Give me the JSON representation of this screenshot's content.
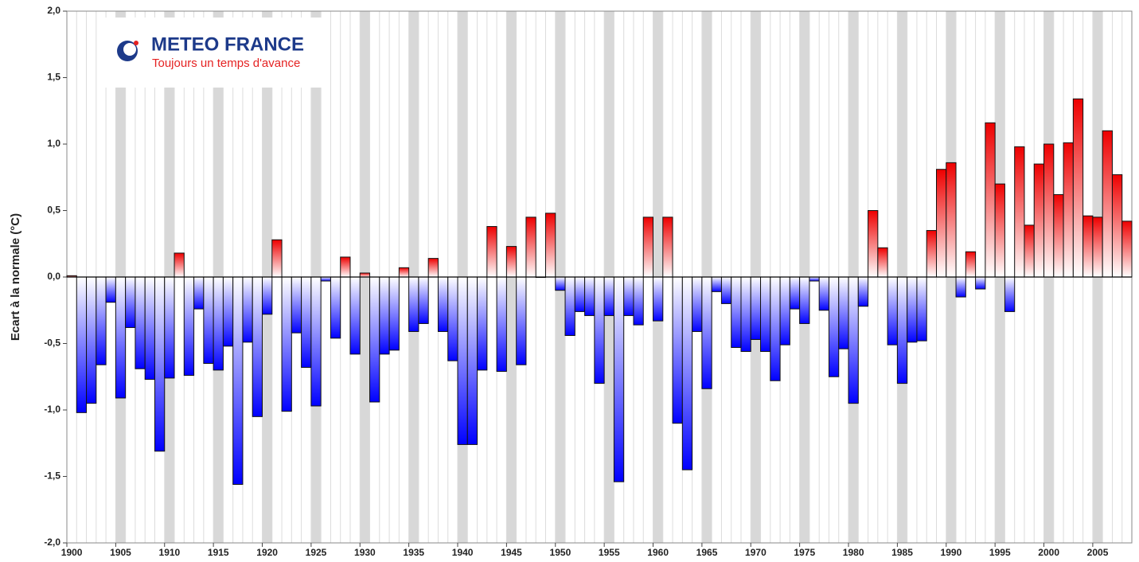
{
  "chart_data": {
    "type": "bar",
    "ylabel": "Ecart à la normale (°C)",
    "logo_title": "METEO FRANCE",
    "logo_subtitle": "Toujours un temps d'avance",
    "categories": [
      "1900",
      null,
      null,
      null,
      null,
      "1905",
      null,
      null,
      null,
      null,
      "1910",
      null,
      null,
      null,
      null,
      "1915",
      null,
      null,
      null,
      null,
      "1920",
      null,
      null,
      null,
      null,
      "1925",
      null,
      null,
      null,
      null,
      "1930",
      null,
      null,
      null,
      null,
      "1935",
      null,
      null,
      null,
      null,
      "1940",
      null,
      null,
      null,
      null,
      "1945",
      null,
      null,
      null,
      null,
      "1950",
      null,
      null,
      null,
      null,
      "1955",
      null,
      null,
      null,
      null,
      "1960",
      null,
      null,
      null,
      null,
      "1965",
      null,
      null,
      null,
      null,
      "1970",
      null,
      null,
      null,
      null,
      "1975",
      null,
      null,
      null,
      null,
      "1980",
      null,
      null,
      null,
      null,
      "1985",
      null,
      null,
      null,
      null,
      "1990",
      null,
      null,
      null,
      null,
      "1995",
      null,
      null,
      null,
      null,
      "2000",
      null,
      null,
      null,
      null,
      "2005",
      null,
      null,
      null
    ],
    "values": [
      0.01,
      -1.02,
      -0.95,
      -0.66,
      -0.19,
      -0.91,
      -0.38,
      -0.69,
      -0.77,
      -1.31,
      -0.76,
      0.18,
      -0.74,
      -0.24,
      -0.65,
      -0.7,
      -0.52,
      -1.56,
      -0.49,
      -1.05,
      -0.28,
      0.28,
      -1.01,
      -0.42,
      -0.68,
      -0.97,
      -0.03,
      -0.46,
      0.15,
      -0.58,
      0.03,
      -0.94,
      -0.58,
      -0.55,
      0.07,
      -0.41,
      -0.35,
      0.14,
      -0.41,
      -0.63,
      -1.26,
      -1.26,
      -0.7,
      0.38,
      -0.71,
      0.23,
      -0.66,
      0.45,
      0.0,
      0.48,
      -0.1,
      -0.44,
      -0.26,
      -0.29,
      -0.8,
      -0.29,
      -1.54,
      -0.29,
      -0.36,
      0.45,
      -0.33,
      0.45,
      -1.1,
      -1.45,
      -0.41,
      -0.84,
      -0.11,
      -0.2,
      -0.53,
      -0.56,
      -0.47,
      -0.56,
      -0.78,
      -0.51,
      -0.24,
      -0.35,
      -0.03,
      -0.25,
      -0.75,
      -0.54,
      -0.95,
      -0.22,
      0.5,
      0.22,
      -0.51,
      -0.8,
      -0.49,
      -0.48,
      0.35,
      0.81,
      0.86,
      -0.15,
      0.19,
      -0.09,
      1.16,
      0.7,
      -0.26,
      0.98,
      0.39,
      0.85,
      1.0,
      0.62,
      1.01,
      1.34,
      0.46,
      0.45,
      1.1,
      0.77,
      0.42
    ],
    "positive_color": "#ee0000",
    "negative_color": "#0000ff",
    "ylim": [
      -2,
      2
    ],
    "yticks": [
      {
        "value": -2,
        "label": "-2,0"
      },
      {
        "value": -1.5,
        "label": "-1,5"
      },
      {
        "value": -1,
        "label": "-1,0"
      },
      {
        "value": -0.5,
        "label": "-0,5"
      },
      {
        "value": 0,
        "label": "0,0"
      },
      {
        "value": 0.5,
        "label": "0,5"
      },
      {
        "value": 1,
        "label": "1,0"
      },
      {
        "value": 1.5,
        "label": "1,5"
      },
      {
        "value": 2,
        "label": "2,0"
      }
    ]
  }
}
